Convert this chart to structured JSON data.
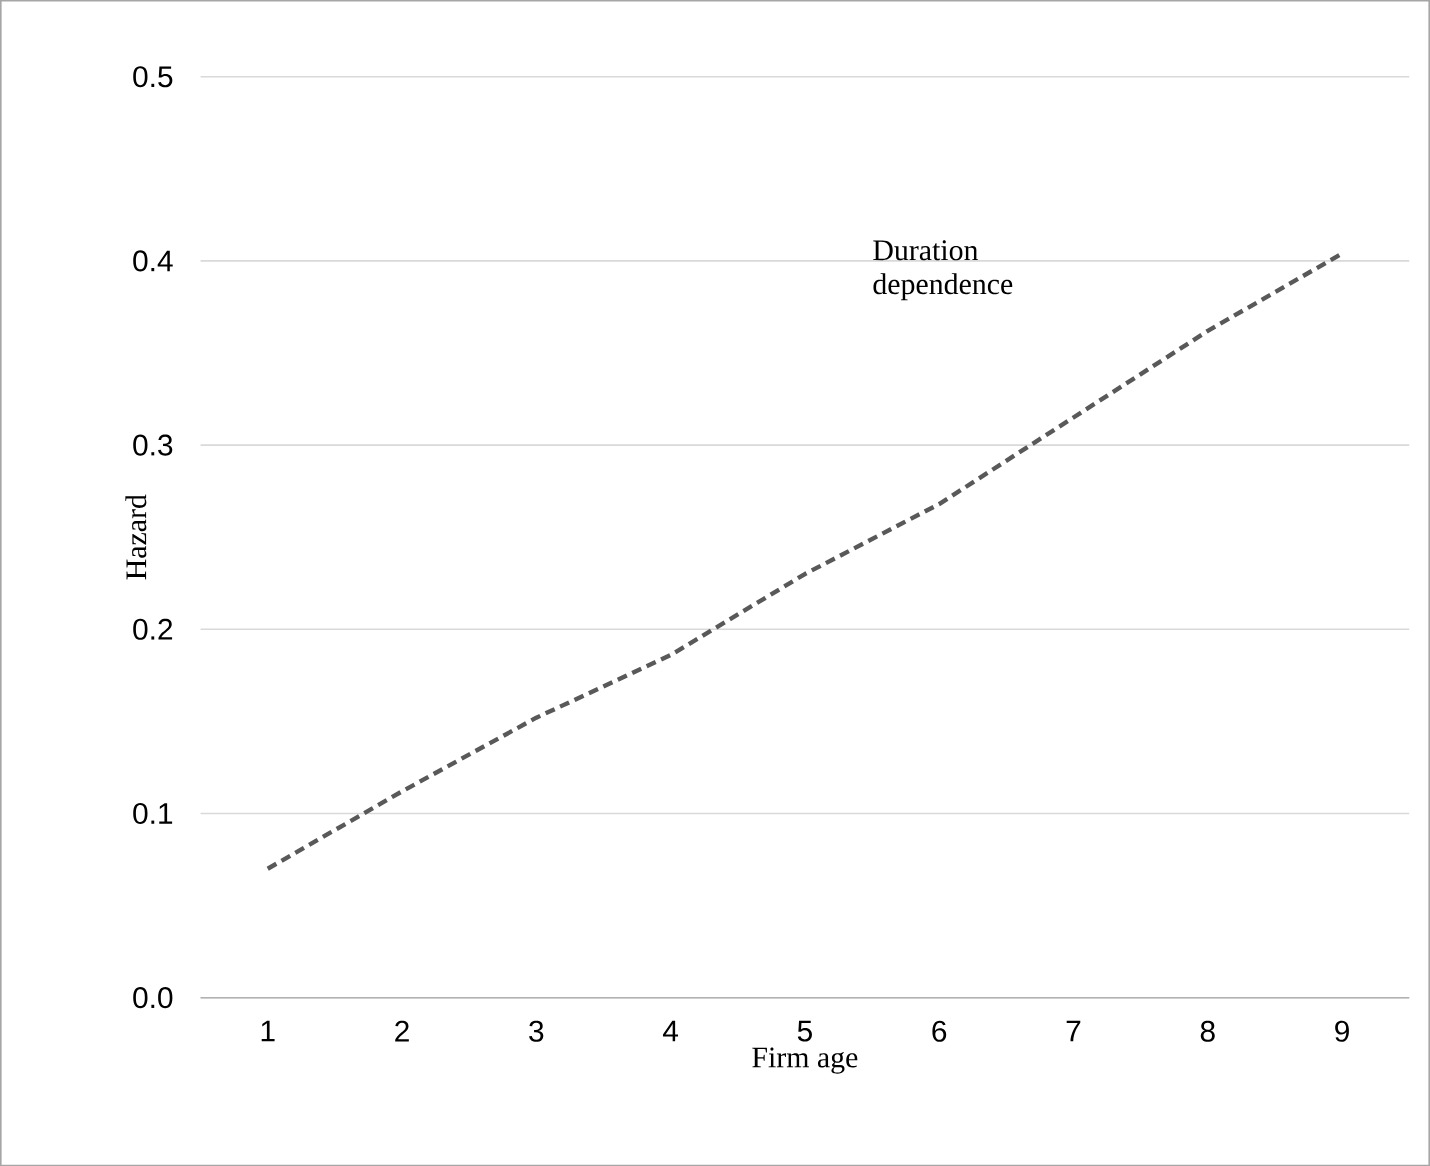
{
  "chart_data": {
    "type": "line",
    "xlabel": "Firm age",
    "ylabel": "Hazard",
    "categories": [
      "1",
      "2",
      "3",
      "4",
      "5",
      "6",
      "7",
      "8",
      "9"
    ],
    "series": [
      {
        "color": "#595959",
        "values": [
          0.07,
          0.112,
          0.152,
          0.186,
          0.23,
          0.268,
          0.315,
          0.362,
          0.404
        ],
        "line_style": "dashed"
      }
    ],
    "ylim": [
      0,
      0.5
    ],
    "yticks": [
      {
        "value": 0,
        "label": "0.0"
      },
      {
        "value": 0.1,
        "label": "0.1"
      },
      {
        "value": 0.2,
        "label": "0.2"
      },
      {
        "value": 0.3,
        "label": "0.3"
      },
      {
        "value": 0.4,
        "label": "0.4"
      },
      {
        "value": 0.5,
        "label": "0.5"
      }
    ],
    "grid": "y",
    "marker": "none",
    "annotations": [
      "Duration dependence"
    ]
  }
}
